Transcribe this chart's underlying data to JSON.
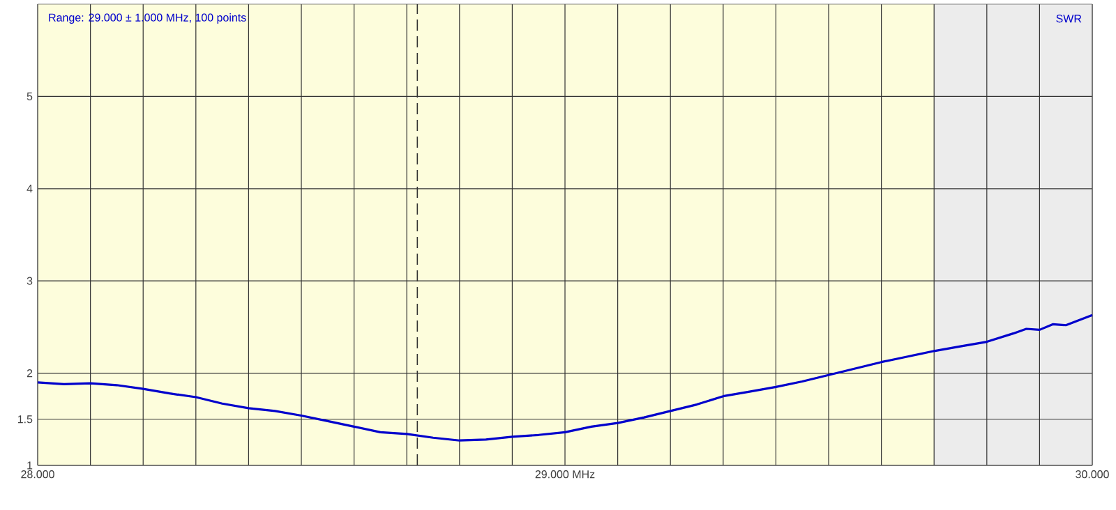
{
  "chart_data": {
    "type": "line",
    "x": [
      28.0,
      28.05,
      28.1,
      28.15,
      28.2,
      28.25,
      28.3,
      28.35,
      28.4,
      28.45,
      28.5,
      28.55,
      28.6,
      28.65,
      28.7,
      28.75,
      28.8,
      28.85,
      28.9,
      28.95,
      29.0,
      29.05,
      29.1,
      29.15,
      29.2,
      29.25,
      29.3,
      29.35,
      29.4,
      29.45,
      29.5,
      29.55,
      29.6,
      29.65,
      29.7,
      29.75,
      29.8,
      29.85,
      29.875,
      29.9,
      29.925,
      29.95,
      30.0
    ],
    "series": [
      {
        "name": "SWR",
        "color": "#0000cc",
        "values": [
          1.9,
          1.88,
          1.89,
          1.87,
          1.83,
          1.78,
          1.74,
          1.67,
          1.62,
          1.59,
          1.54,
          1.48,
          1.42,
          1.36,
          1.34,
          1.3,
          1.27,
          1.28,
          1.31,
          1.33,
          1.36,
          1.42,
          1.46,
          1.52,
          1.59,
          1.66,
          1.75,
          1.8,
          1.85,
          1.91,
          1.98,
          2.05,
          2.12,
          2.18,
          2.24,
          2.29,
          2.34,
          2.43,
          2.48,
          2.47,
          2.53,
          2.52,
          2.63
        ]
      }
    ],
    "xlim": [
      28.0,
      30.0
    ],
    "ylim": [
      1,
      6
    ],
    "xticks": [
      {
        "value": 28.0,
        "label": "28.000"
      },
      {
        "value": 28.1,
        "label": null
      },
      {
        "value": 28.2,
        "label": null
      },
      {
        "value": 28.3,
        "label": null
      },
      {
        "value": 28.4,
        "label": null
      },
      {
        "value": 28.5,
        "label": null
      },
      {
        "value": 28.6,
        "label": null
      },
      {
        "value": 28.7,
        "label": null
      },
      {
        "value": 28.8,
        "label": null
      },
      {
        "value": 28.9,
        "label": null
      },
      {
        "value": 29.0,
        "label": "29.000 MHz"
      },
      {
        "value": 29.1,
        "label": null
      },
      {
        "value": 29.2,
        "label": null
      },
      {
        "value": 29.3,
        "label": null
      },
      {
        "value": 29.4,
        "label": null
      },
      {
        "value": 29.5,
        "label": null
      },
      {
        "value": 29.6,
        "label": null
      },
      {
        "value": 29.7,
        "label": null
      },
      {
        "value": 29.8,
        "label": null
      },
      {
        "value": 29.9,
        "label": null
      },
      {
        "value": 30.0,
        "label": "30.000"
      }
    ],
    "yticks": [
      1,
      1.5,
      2,
      3,
      4,
      5
    ],
    "grid": true,
    "bands": [
      {
        "axis": "x",
        "from": 28.0,
        "to": 29.7,
        "color": "#fdfddc"
      },
      {
        "axis": "x",
        "from": 29.7,
        "to": 30.0,
        "color": "#ececec"
      }
    ],
    "ref_lines": [
      {
        "axis": "x",
        "value": 28.72,
        "line_style": "dashed",
        "color": "#333333"
      }
    ],
    "annotations": [
      "Range: 29.000 ± 1.000 MHz, 100 points"
    ]
  }
}
